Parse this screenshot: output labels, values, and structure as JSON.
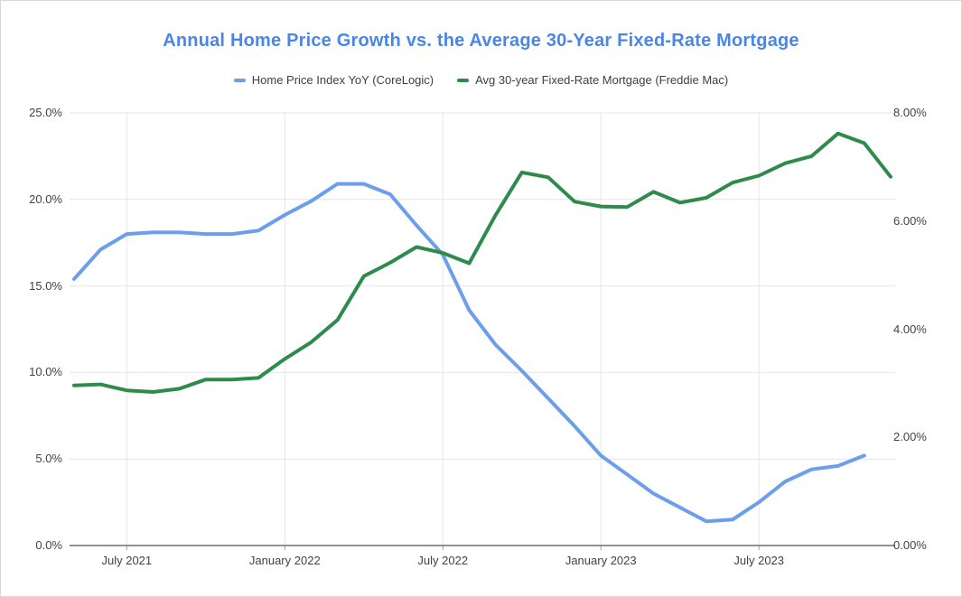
{
  "chart_data": {
    "type": "line",
    "title": "Annual Home Price Growth vs. the Average 30-Year Fixed-Rate Mortgage",
    "title_color": "#4a86e8",
    "legend_position": "top",
    "grid": {
      "h_color": "#e6e6e6",
      "v_color": "#e6e6e6",
      "baseline_color": "#6f6f6f",
      "tick_mark_color": "#9e9e9e"
    },
    "x_labels": [
      "May 2021",
      "Jun 2021",
      "Jul 2021",
      "Aug 2021",
      "Sep 2021",
      "Oct 2021",
      "Nov 2021",
      "Dec 2021",
      "Jan 2022",
      "Feb 2022",
      "Mar 2022",
      "Apr 2022",
      "May 2022",
      "Jun 2022",
      "Jul 2022",
      "Aug 2022",
      "Sep 2022",
      "Oct 2022",
      "Nov 2022",
      "Dec 2022",
      "Jan 2023",
      "Feb 2023",
      "Mar 2023",
      "Apr 2023",
      "May 2023",
      "Jun 2023",
      "Jul 2023",
      "Aug 2023",
      "Sep 2023",
      "Oct 2023",
      "Nov 2023",
      "Dec 2023"
    ],
    "x_axis_ticks": [
      {
        "label": "July 2021",
        "index": 2
      },
      {
        "label": "January 2022",
        "index": 8
      },
      {
        "label": "July 2022",
        "index": 14
      },
      {
        "label": "January 2023",
        "index": 20
      },
      {
        "label": "July 2023",
        "index": 26
      }
    ],
    "left_axis": {
      "min": 0,
      "max": 25,
      "tick_values": [
        0,
        5,
        10,
        15,
        20,
        25
      ],
      "tick_labels": [
        "0.0%",
        "5.0%",
        "10.0%",
        "15.0%",
        "20.0%",
        "25.0%"
      ]
    },
    "right_axis": {
      "min": 0,
      "max": 8,
      "tick_values": [
        0,
        2,
        4,
        6,
        8
      ],
      "tick_labels": [
        "0.00%",
        "2.00%",
        "4.00%",
        "6.00%",
        "8.00%"
      ]
    },
    "series": [
      {
        "name": "Home Price Index YoY (CoreLogic)",
        "color": "#6d9eeb",
        "axis": "left",
        "values": [
          15.4,
          17.1,
          18.0,
          18.1,
          18.1,
          18.0,
          18.0,
          18.2,
          19.1,
          19.9,
          20.9,
          20.9,
          20.3,
          18.5,
          16.8,
          13.6,
          11.6,
          10.1,
          8.5,
          6.9,
          5.2,
          4.1,
          3.0,
          2.2,
          1.4,
          1.5,
          2.5,
          3.7,
          4.4,
          4.6,
          5.2,
          null
        ]
      },
      {
        "name": "Avg 30-year Fixed-Rate Mortgage (Freddie Mac)",
        "color": "#2e8b4c",
        "axis": "right",
        "values": [
          2.96,
          2.98,
          2.87,
          2.84,
          2.9,
          3.07,
          3.07,
          3.1,
          3.45,
          3.76,
          4.17,
          4.98,
          5.23,
          5.52,
          5.41,
          5.22,
          6.11,
          6.9,
          6.81,
          6.36,
          6.27,
          6.26,
          6.54,
          6.34,
          6.43,
          6.71,
          6.84,
          7.07,
          7.2,
          7.62,
          7.44,
          6.82
        ]
      }
    ]
  }
}
